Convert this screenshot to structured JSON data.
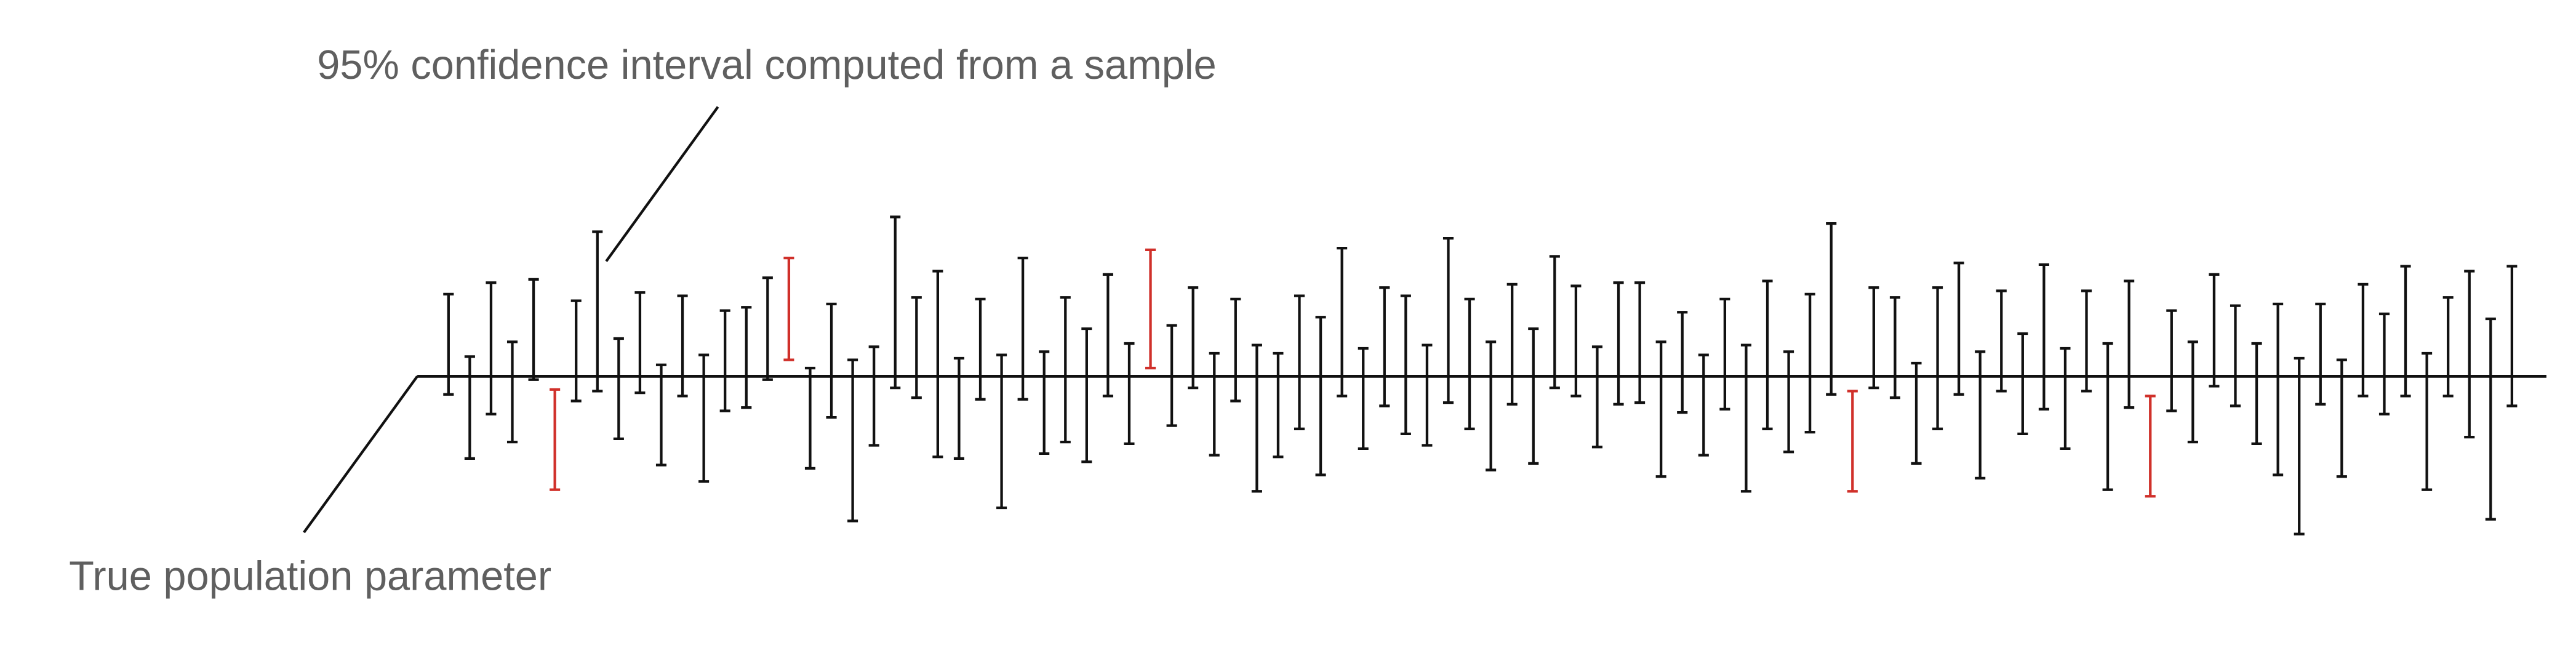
{
  "annotations": {
    "interval_label": "95% confidence interval computed from a sample",
    "parameter_label": "True population parameter"
  },
  "true_parameter": 0,
  "colors": {
    "covers": "#111111",
    "misses": "#d0302a"
  },
  "intervals": [
    {
      "lower": -11,
      "upper": 50
    },
    {
      "lower": -50,
      "upper": 12
    },
    {
      "lower": -23,
      "upper": 57
    },
    {
      "lower": -40,
      "upper": 21
    },
    {
      "lower": -2,
      "upper": 59
    },
    {
      "lower": -69,
      "upper": -8
    },
    {
      "lower": -15,
      "upper": 46
    },
    {
      "lower": -9,
      "upper": 88
    },
    {
      "lower": -38,
      "upper": 23
    },
    {
      "lower": -10,
      "upper": 51
    },
    {
      "lower": -54,
      "upper": 7
    },
    {
      "lower": -12,
      "upper": 49
    },
    {
      "lower": -64,
      "upper": 13
    },
    {
      "lower": -21,
      "upper": 40
    },
    {
      "lower": -19,
      "upper": 42
    },
    {
      "lower": -2,
      "upper": 60
    },
    {
      "lower": 10,
      "upper": 72
    },
    {
      "lower": -56,
      "upper": 5
    },
    {
      "lower": -25,
      "upper": 44
    },
    {
      "lower": -88,
      "upper": 10
    },
    {
      "lower": -42,
      "upper": 18
    },
    {
      "lower": -7,
      "upper": 97
    },
    {
      "lower": -13,
      "upper": 48
    },
    {
      "lower": -49,
      "upper": 64
    },
    {
      "lower": -50,
      "upper": 11
    },
    {
      "lower": -14,
      "upper": 47
    },
    {
      "lower": -80,
      "upper": 13
    },
    {
      "lower": -14,
      "upper": 72
    },
    {
      "lower": -47,
      "upper": 15
    },
    {
      "lower": -40,
      "upper": 48
    },
    {
      "lower": -52,
      "upper": 29
    },
    {
      "lower": -12,
      "upper": 62
    },
    {
      "lower": -41,
      "upper": 20
    },
    {
      "lower": 5,
      "upper": 77
    },
    {
      "lower": -30,
      "upper": 31
    },
    {
      "lower": -7,
      "upper": 54
    },
    {
      "lower": -48,
      "upper": 14
    },
    {
      "lower": -15,
      "upper": 47
    },
    {
      "lower": -70,
      "upper": 19
    },
    {
      "lower": -49,
      "upper": 14
    },
    {
      "lower": -32,
      "upper": 49
    },
    {
      "lower": -60,
      "upper": 36
    },
    {
      "lower": -12,
      "upper": 78
    },
    {
      "lower": -44,
      "upper": 17
    },
    {
      "lower": -18,
      "upper": 54
    },
    {
      "lower": -35,
      "upper": 49
    },
    {
      "lower": -42,
      "upper": 19
    },
    {
      "lower": -16,
      "upper": 84
    },
    {
      "lower": -32,
      "upper": 47
    },
    {
      "lower": -57,
      "upper": 21
    },
    {
      "lower": -17,
      "upper": 56
    },
    {
      "lower": -53,
      "upper": 29
    },
    {
      "lower": -7,
      "upper": 73
    },
    {
      "lower": -12,
      "upper": 55
    },
    {
      "lower": -43,
      "upper": 18
    },
    {
      "lower": -17,
      "upper": 57
    },
    {
      "lower": -16,
      "upper": 57
    },
    {
      "lower": -61,
      "upper": 21
    },
    {
      "lower": -22,
      "upper": 39
    },
    {
      "lower": -48,
      "upper": 13
    },
    {
      "lower": -20,
      "upper": 47
    },
    {
      "lower": -70,
      "upper": 19
    },
    {
      "lower": -32,
      "upper": 58
    },
    {
      "lower": -46,
      "upper": 15
    },
    {
      "lower": -34,
      "upper": 50
    },
    {
      "lower": -11,
      "upper": 93
    },
    {
      "lower": -70,
      "upper": -9
    },
    {
      "lower": -7,
      "upper": 54
    },
    {
      "lower": -13,
      "upper": 48
    },
    {
      "lower": -53,
      "upper": 8
    },
    {
      "lower": -32,
      "upper": 54
    },
    {
      "lower": -11,
      "upper": 69
    },
    {
      "lower": -62,
      "upper": 15
    },
    {
      "lower": -9,
      "upper": 52
    },
    {
      "lower": -35,
      "upper": 26
    },
    {
      "lower": -20,
      "upper": 68
    },
    {
      "lower": -44,
      "upper": 17
    },
    {
      "lower": -9,
      "upper": 52
    },
    {
      "lower": -69,
      "upper": 20
    },
    {
      "lower": -19,
      "upper": 58
    },
    {
      "lower": -73,
      "upper": -12
    },
    {
      "lower": -21,
      "upper": 40
    },
    {
      "lower": -40,
      "upper": 21
    },
    {
      "lower": -6,
      "upper": 62
    },
    {
      "lower": -18,
      "upper": 43
    },
    {
      "lower": -41,
      "upper": 20
    },
    {
      "lower": -60,
      "upper": 44
    },
    {
      "lower": -96,
      "upper": 11
    },
    {
      "lower": -17,
      "upper": 44
    },
    {
      "lower": -61,
      "upper": 10
    },
    {
      "lower": -12,
      "upper": 56
    },
    {
      "lower": -23,
      "upper": 38
    },
    {
      "lower": -12,
      "upper": 67
    },
    {
      "lower": -69,
      "upper": 14
    },
    {
      "lower": -12,
      "upper": 48
    },
    {
      "lower": -37,
      "upper": 64
    },
    {
      "lower": -87,
      "upper": 35
    },
    {
      "lower": -18,
      "upper": 67
    }
  ]
}
